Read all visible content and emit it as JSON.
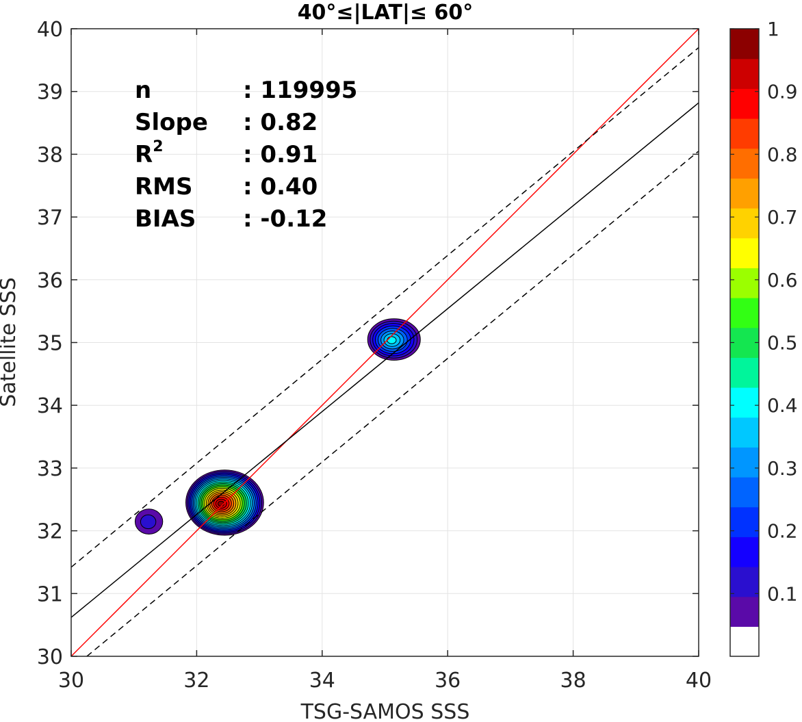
{
  "chart_data": {
    "type": "scatter",
    "subtype": "density-contour",
    "title": "40°≤|LAT|≤ 60°",
    "xlabel": "TSG-SAMOS SSS",
    "ylabel": "Satellite SSS",
    "xlim": [
      30,
      40
    ],
    "ylim": [
      30,
      40
    ],
    "xticks": [
      "30",
      "32",
      "34",
      "36",
      "38",
      "40"
    ],
    "yticks": [
      "30",
      "31",
      "32",
      "33",
      "34",
      "35",
      "36",
      "37",
      "38",
      "39",
      "40"
    ],
    "grid": true,
    "stats": [
      {
        "label": "n",
        "sep": ": ",
        "value": "119995"
      },
      {
        "label": "Slope",
        "sep": ": ",
        "value": "0.82"
      },
      {
        "label": "R",
        "sup": "2",
        "sep": ": ",
        "value": "0.91"
      },
      {
        "label": "RMS",
        "sep": ": ",
        "value": "0.40"
      },
      {
        "label": "BIAS",
        "sep": ": ",
        "value": "-0.12"
      }
    ],
    "lines": [
      {
        "role": "one-to-one",
        "color": "#ff0000",
        "style": "solid",
        "points": [
          [
            30,
            30
          ],
          [
            40,
            40
          ]
        ]
      },
      {
        "role": "regression-fit",
        "color": "#000000",
        "style": "solid",
        "points": [
          [
            30,
            30.62
          ],
          [
            40,
            38.82
          ]
        ]
      },
      {
        "role": "upper-bound",
        "color": "#000000",
        "style": "dashed",
        "points": [
          [
            30,
            31.42
          ],
          [
            40,
            39.7
          ]
        ]
      },
      {
        "role": "lower-bound",
        "color": "#000000",
        "style": "dashed",
        "points": [
          [
            30.25,
            30
          ],
          [
            40,
            38.05
          ]
        ]
      }
    ],
    "density_clusters": [
      {
        "center": [
          32.45,
          32.45
        ],
        "radius_x": 0.62,
        "radius_y": 0.52,
        "peak": 1.0
      },
      {
        "center": [
          35.15,
          35.05
        ],
        "radius_x": 0.42,
        "radius_y": 0.33,
        "peak": 0.38
      },
      {
        "center": [
          31.25,
          32.15
        ],
        "radius_x": 0.22,
        "radius_y": 0.2,
        "peak": 0.12
      }
    ],
    "colorbar": {
      "ticks": [
        "0.1",
        "0.2",
        "0.3",
        "0.4",
        "0.5",
        "0.6",
        "0.7",
        "0.8",
        "0.9",
        "1"
      ],
      "levels": 20,
      "colors": [
        "#ffffff",
        "#5a0aa8",
        "#2a0fcf",
        "#1400ff",
        "#0032ff",
        "#0064ff",
        "#0096ff",
        "#00c8ff",
        "#00ffff",
        "#00f59b",
        "#14e650",
        "#32ff14",
        "#9bff00",
        "#ffff00",
        "#ffd200",
        "#ffa000",
        "#ff6e00",
        "#ff3c00",
        "#ff0000",
        "#cd0000",
        "#8c0000"
      ]
    }
  }
}
